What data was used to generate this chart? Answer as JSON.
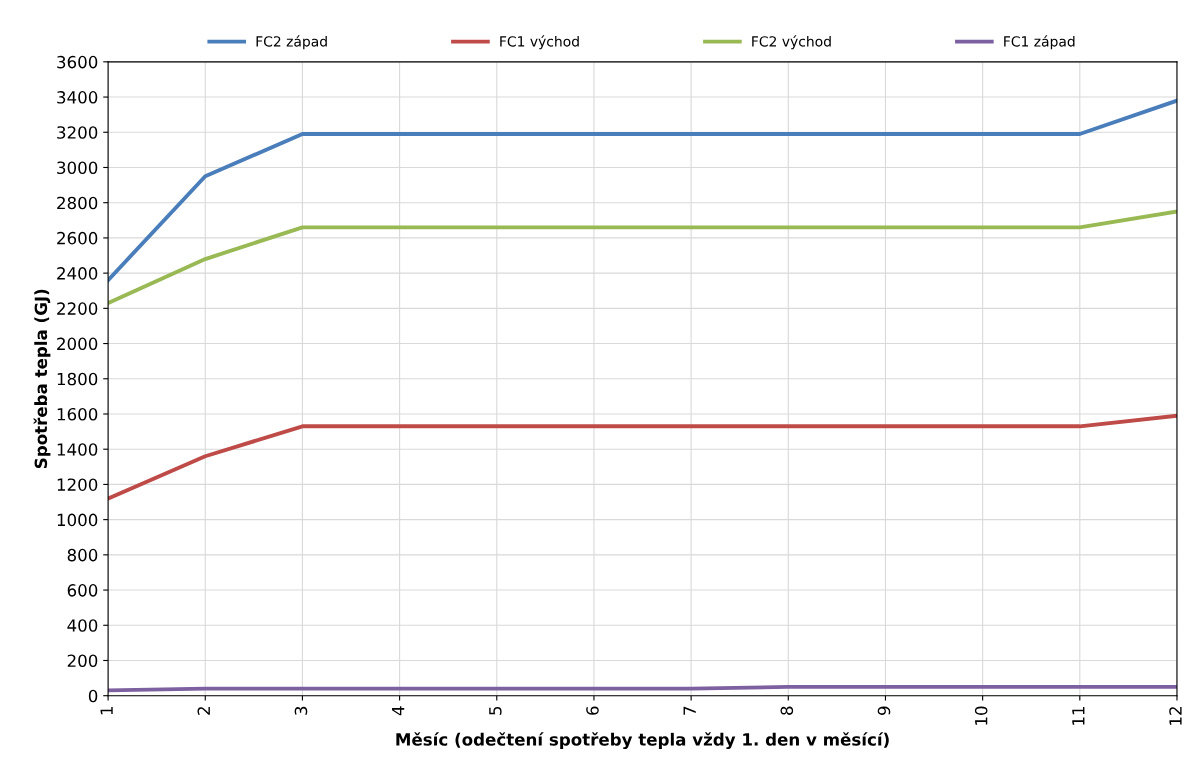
{
  "chart_data": {
    "type": "line",
    "xlabel": "Měsíc (odečtení spotřeby tepla vždy 1. den v měsící)",
    "ylabel": "Spotřeba tepla (GJ)",
    "x": [
      1,
      2,
      3,
      4,
      5,
      6,
      7,
      8,
      9,
      10,
      11,
      12
    ],
    "series": [
      {
        "name": "FC2 západ",
        "color": "#4a7ebb",
        "values": [
          2360,
          2950,
          3190,
          3190,
          3190,
          3190,
          3190,
          3190,
          3190,
          3190,
          3190,
          3380
        ]
      },
      {
        "name": "FC1 východ",
        "color": "#be4b48",
        "values": [
          1120,
          1360,
          1530,
          1530,
          1530,
          1530,
          1530,
          1530,
          1530,
          1530,
          1530,
          1590
        ]
      },
      {
        "name": "FC2 východ",
        "color": "#98b954",
        "values": [
          2230,
          2480,
          2660,
          2660,
          2660,
          2660,
          2660,
          2660,
          2660,
          2660,
          2660,
          2750
        ]
      },
      {
        "name": "FC1 západ",
        "color": "#7d60a0",
        "values": [
          30,
          40,
          40,
          40,
          40,
          40,
          40,
          50,
          50,
          50,
          50,
          50
        ]
      }
    ],
    "xlim": [
      1,
      12
    ],
    "xticks": [
      1,
      2,
      3,
      4,
      5,
      6,
      7,
      8,
      9,
      10,
      11,
      12
    ],
    "ylim": [
      0,
      3600
    ],
    "yticks": [
      0,
      200,
      400,
      600,
      800,
      1000,
      1200,
      1400,
      1600,
      1800,
      2000,
      2200,
      2400,
      2600,
      2800,
      3000,
      3200,
      3400,
      3600
    ],
    "grid": true,
    "legend": "top",
    "marker": "none",
    "line_style": "solid"
  }
}
